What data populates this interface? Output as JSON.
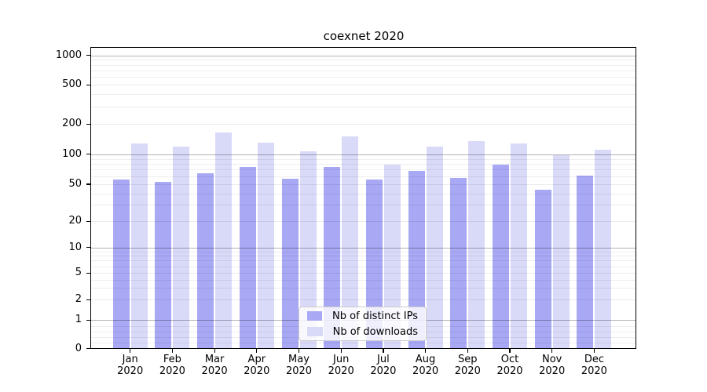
{
  "chart_data": {
    "type": "bar",
    "title": "coexnet 2020",
    "x_tick_labels": [
      "Jan 2020",
      "Feb 2020",
      "Mar 2020",
      "Apr 2020",
      "May 2020",
      "Jun 2020",
      "Jul 2020",
      "Aug 2020",
      "Sep 2020",
      "Oct 2020",
      "Nov 2020",
      "Dec 2020"
    ],
    "series": [
      {
        "name": "Nb of distinct IPs",
        "color": "#a8a8f4",
        "values": [
          56,
          53,
          65,
          74,
          57,
          75,
          56,
          68,
          58,
          78,
          44,
          61
        ]
      },
      {
        "name": "Nb of downloads",
        "color": "#d9d9f8",
        "values": [
          127,
          120,
          166,
          131,
          107,
          151,
          79,
          120,
          135,
          127,
          98,
          111
        ]
      }
    ],
    "y_ticks": [
      0,
      1,
      2,
      5,
      10,
      20,
      50,
      100,
      200,
      500,
      1000
    ],
    "y_scale": "log-with-zero",
    "ylim": [
      0,
      1200
    ],
    "xlabel": "",
    "ylabel": "",
    "grid": true,
    "legend_location": "bottom-center-inside"
  }
}
